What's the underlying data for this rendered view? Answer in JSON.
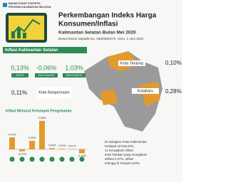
{
  "header": {
    "org_line1": "BADAN PUSAT STATISTIK",
    "org_line2": "PROVINSI KALIMANTAN SELATAN",
    "title_line1": "Perkembangan Indeks Harga",
    "title_line2": "Konsumen/Inflasi",
    "subtitle": "Kalimantan Selatan Bulan Mei 2020",
    "release": "Berita Resmi Statistik No. 030/06/63/Th. XXIV, 2 Juni 2020"
  },
  "inflation": {
    "heading": "Inflasi Kalimantan Selatan",
    "items": [
      {
        "value": "0,13%",
        "period": "Mei'20"
      },
      {
        "value": "-0,06%",
        "period": "Des'19-Mei'20"
      },
      {
        "value": "1,03%",
        "period": "Mei'19-Mei'20"
      }
    ]
  },
  "cities": [
    {
      "name": "Kota Tanjung",
      "value": "0,10%"
    },
    {
      "name": "Kota Banjarmasin",
      "value": "0,11%"
    },
    {
      "name": "Kotabaru",
      "value": "0,28%"
    }
  ],
  "note": [
    "Di sebagian Pulau Kalimantan",
    "terdapat 12 kota IHK,",
    "11 mengalami inflasi.",
    "Kota Tarakan yang mengalami",
    "deflasi 0,27%, inflasi",
    "tertinggi di Sampit 0,83%."
  ],
  "chart_data": {
    "type": "bar",
    "title": "Inflasi Menurut Kelompok Pengeluaran",
    "values": [
      0.41,
      -0.07,
      0.29,
      0.98,
      0.04,
      0.02,
      0.01,
      -0.14
    ],
    "value_labels": [
      "0,41%",
      "-0,07%",
      "0,29%",
      "0,98%",
      "0,04%",
      "0,02%",
      "0,01%",
      "-0,14%"
    ],
    "color": "#e39a2d"
  }
}
